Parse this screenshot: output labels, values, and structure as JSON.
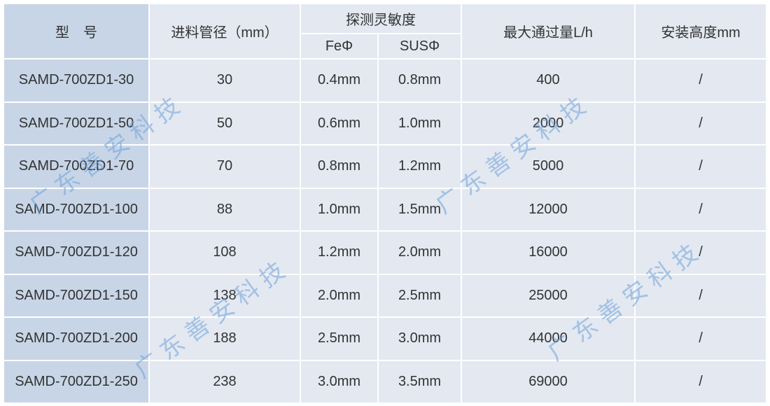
{
  "header": {
    "model": "型　号",
    "inlet_diameter": "进料管径（mm）",
    "sensitivity": "探测灵敏度",
    "fe": "FeΦ",
    "sus": "SUSΦ",
    "max_flow": "最大通过量L/h",
    "install_height": "安装高度mm"
  },
  "rows": [
    {
      "model": "SAMD-700ZD1-30",
      "diameter": "30",
      "fe": "0.4mm",
      "sus": "0.8mm",
      "flow": "400",
      "height": "/"
    },
    {
      "model": "SAMD-700ZD1-50",
      "diameter": "50",
      "fe": "0.6mm",
      "sus": "1.0mm",
      "flow": "2000",
      "height": "/"
    },
    {
      "model": "SAMD-700ZD1-70",
      "diameter": "70",
      "fe": "0.8mm",
      "sus": "1.2mm",
      "flow": "5000",
      "height": "/"
    },
    {
      "model": "SAMD-700ZD1-100",
      "diameter": "88",
      "fe": "1.0mm",
      "sus": "1.5mm",
      "flow": "12000",
      "height": "/"
    },
    {
      "model": "SAMD-700ZD1-120",
      "diameter": "108",
      "fe": "1.2mm",
      "sus": "2.0mm",
      "flow": "16000",
      "height": "/"
    },
    {
      "model": "SAMD-700ZD1-150",
      "diameter": "138",
      "fe": "2.0mm",
      "sus": "2.5mm",
      "flow": "25000",
      "height": "/"
    },
    {
      "model": "SAMD-700ZD1-200",
      "diameter": "188",
      "fe": "2.5mm",
      "sus": "3.0mm",
      "flow": "44000",
      "height": "/"
    },
    {
      "model": "SAMD-700ZD1-250",
      "diameter": "238",
      "fe": "3.0mm",
      "sus": "3.5mm",
      "flow": "69000",
      "height": "/"
    }
  ],
  "watermark": "广东善安科技",
  "colors": {
    "model_column": "#c7d5e7",
    "cell": "#e3e8f1",
    "watermark": "#6ea0d7"
  }
}
